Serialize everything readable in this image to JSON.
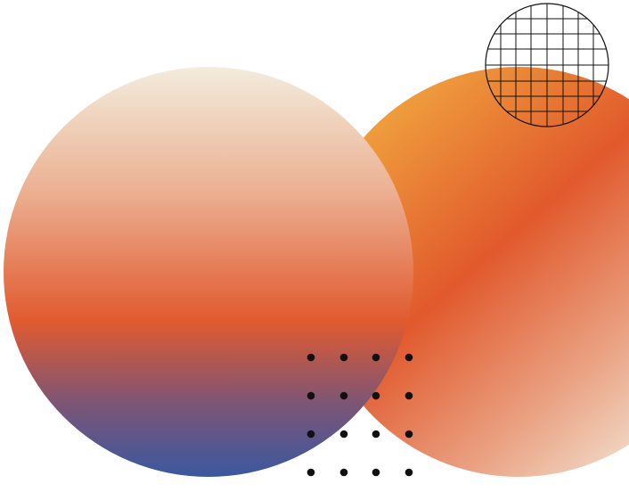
{
  "colors": {
    "background": "#ffffff",
    "orange": "#ee9a3c",
    "deep_orange": "#e15a2d",
    "peach": "#ecb396",
    "cream": "#f2eadb",
    "navy_blue": "#3c59a0",
    "ink": "#111111"
  },
  "composition": {
    "shapes": [
      {
        "name": "circle-left-vertical-gradient",
        "gradient": "cream-peach-orange-blue"
      },
      {
        "name": "circle-right-diagonal-gradient",
        "gradient": "orange-deep-orange-peach-cream"
      },
      {
        "name": "wireframe-grid-circle",
        "grid_lines_per_axis": 7
      },
      {
        "name": "dot-matrix",
        "rows": 4,
        "columns": 4
      }
    ]
  }
}
